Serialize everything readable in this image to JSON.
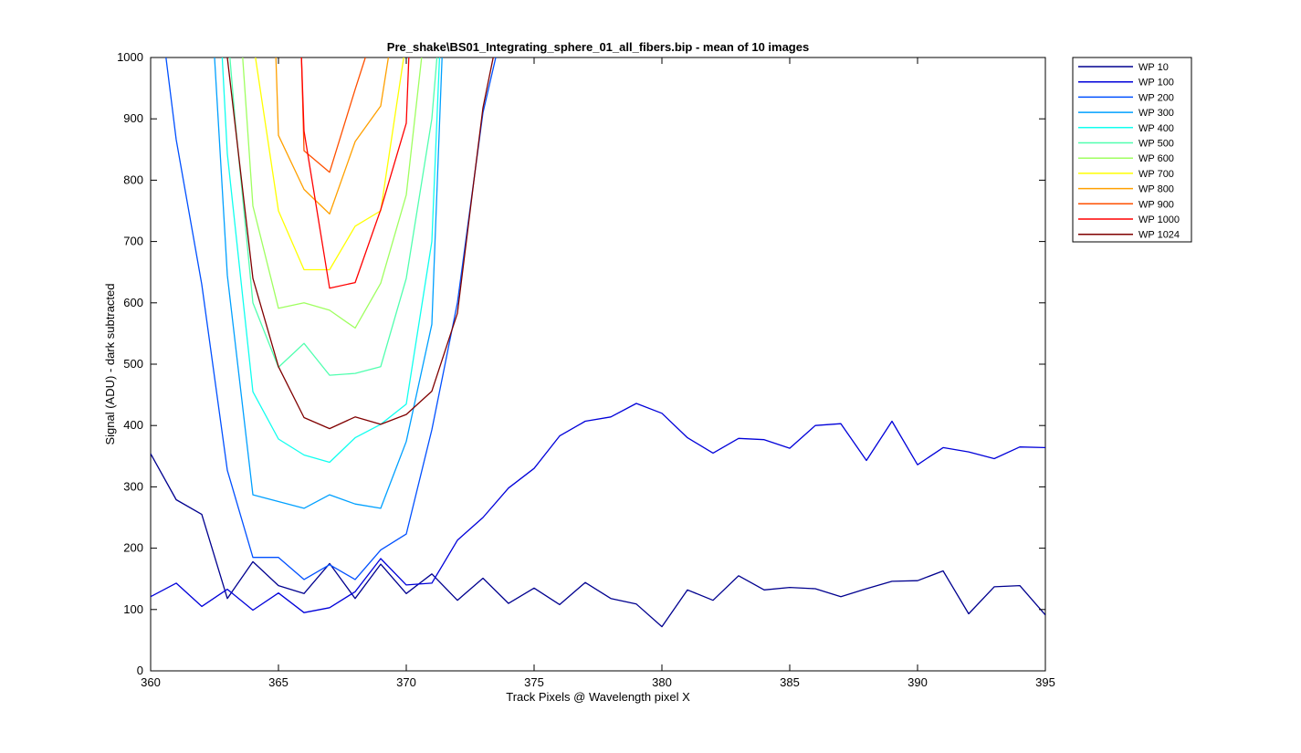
{
  "chart_data": {
    "type": "line",
    "title": "Pre_shake\\BS01_Integrating_sphere_01_all_fibers.bip - mean of 10 images",
    "xlabel": "Track Pixels @ Wavelength pixel X",
    "ylabel": "Signal (ADU) - dark subtracted",
    "xlim": [
      360,
      395
    ],
    "ylim": [
      0,
      1000
    ],
    "xticks": [
      360,
      365,
      370,
      375,
      380,
      385,
      390,
      395
    ],
    "yticks": [
      0,
      100,
      200,
      300,
      400,
      500,
      600,
      700,
      800,
      900,
      1000
    ],
    "grid": false,
    "legend_position": "outside-top-right",
    "series": [
      {
        "name": "WP 10",
        "color": "#00008F",
        "x": [
          360,
          361,
          362,
          363,
          364,
          365,
          366,
          367,
          368,
          369,
          370,
          371,
          372,
          373,
          374,
          375,
          376,
          377,
          378,
          379,
          380,
          381,
          382,
          383,
          384,
          385,
          386,
          387,
          388,
          389,
          390,
          391,
          392,
          393,
          394,
          395
        ],
        "y": [
          354,
          279,
          255,
          118,
          178,
          139,
          126,
          175,
          118,
          174,
          126,
          158,
          115,
          151,
          110,
          135,
          108,
          144,
          118,
          109,
          72,
          132,
          115,
          155,
          132,
          136,
          134,
          121,
          134,
          146,
          147,
          163,
          93,
          137,
          139,
          91
        ]
      },
      {
        "name": "WP 100",
        "color": "#0000D9",
        "x": [
          360,
          361,
          362,
          363,
          364,
          365,
          366,
          367,
          368,
          369,
          370,
          371,
          372,
          373,
          374,
          375,
          376,
          377,
          378,
          379,
          380,
          381,
          382,
          383,
          384,
          385,
          386,
          387,
          388,
          389,
          390,
          391,
          392,
          393,
          394,
          395
        ],
        "y": [
          121,
          143,
          105,
          133,
          99,
          127,
          95,
          103,
          129,
          183,
          140,
          143,
          213,
          250,
          298,
          330,
          383,
          407,
          414,
          436,
          420,
          380,
          355,
          379,
          377,
          363,
          400,
          403,
          343,
          407,
          336,
          364,
          357,
          346,
          365,
          364
        ]
      },
      {
        "name": "WP 200",
        "color": "#0050FF",
        "x": [
          360.6,
          361,
          362,
          363,
          364,
          365,
          366,
          367,
          368,
          369,
          370,
          371,
          372,
          373,
          373.5
        ],
        "y": [
          1000,
          866,
          630,
          327,
          185,
          185,
          149,
          173,
          149,
          197,
          223,
          393,
          600,
          910,
          1000
        ]
      },
      {
        "name": "WP 300",
        "color": "#00A0FF",
        "x": [
          362.5,
          363,
          364,
          365,
          366,
          367,
          368,
          369,
          370,
          371,
          371.4
        ],
        "y": [
          1000,
          645,
          287,
          276,
          265,
          287,
          272,
          265,
          374,
          565,
          1000
        ]
      },
      {
        "name": "WP 400",
        "color": "#10FFEF",
        "x": [
          362.8,
          363,
          364,
          365,
          366,
          367,
          368,
          369,
          370,
          371,
          371.3
        ],
        "y": [
          1000,
          843,
          455,
          378,
          352,
          340,
          380,
          402,
          435,
          700,
          1000
        ]
      },
      {
        "name": "WP 500",
        "color": "#50FFAF",
        "x": [
          363.1,
          363.3,
          364,
          365,
          366,
          367,
          368,
          369,
          370,
          371,
          371.2
        ],
        "y": [
          1000,
          900,
          600,
          495,
          534,
          482,
          485,
          496,
          640,
          900,
          1000
        ]
      },
      {
        "name": "WP 600",
        "color": "#9FFF60",
        "x": [
          363.6,
          364,
          365,
          366,
          367,
          368,
          369,
          370,
          370.6
        ],
        "y": [
          1000,
          758,
          591,
          600,
          588,
          559,
          632,
          776,
          1000
        ]
      },
      {
        "name": "WP 700",
        "color": "#FFFF00",
        "x": [
          364.1,
          365,
          366,
          367,
          368,
          369,
          369.9
        ],
        "y": [
          1000,
          750,
          654,
          654,
          725,
          750,
          1000
        ]
      },
      {
        "name": "WP 800",
        "color": "#FFA000",
        "x": [
          364.9,
          365,
          366,
          367,
          368,
          369,
          369.3
        ],
        "y": [
          1000,
          873,
          785,
          745,
          863,
          921,
          1000
        ]
      },
      {
        "name": "WP 900",
        "color": "#FF5000",
        "x": [
          365.9,
          366,
          367,
          368,
          368.4
        ],
        "y": [
          1000,
          848,
          813,
          948,
          1000
        ]
      },
      {
        "name": "WP 1000",
        "color": "#FF0000",
        "x": [
          365.9,
          366,
          367,
          368,
          369,
          370,
          370.1
        ],
        "y": [
          1000,
          880,
          624,
          633,
          752,
          893,
          1000
        ]
      },
      {
        "name": "WP 1024",
        "color": "#800000",
        "x": [
          363,
          364,
          365,
          366,
          367,
          368,
          369,
          370,
          371,
          372,
          373,
          373.4
        ],
        "y": [
          1000,
          640,
          496,
          413,
          395,
          414,
          402,
          418,
          456,
          583,
          918,
          1000
        ]
      }
    ]
  }
}
